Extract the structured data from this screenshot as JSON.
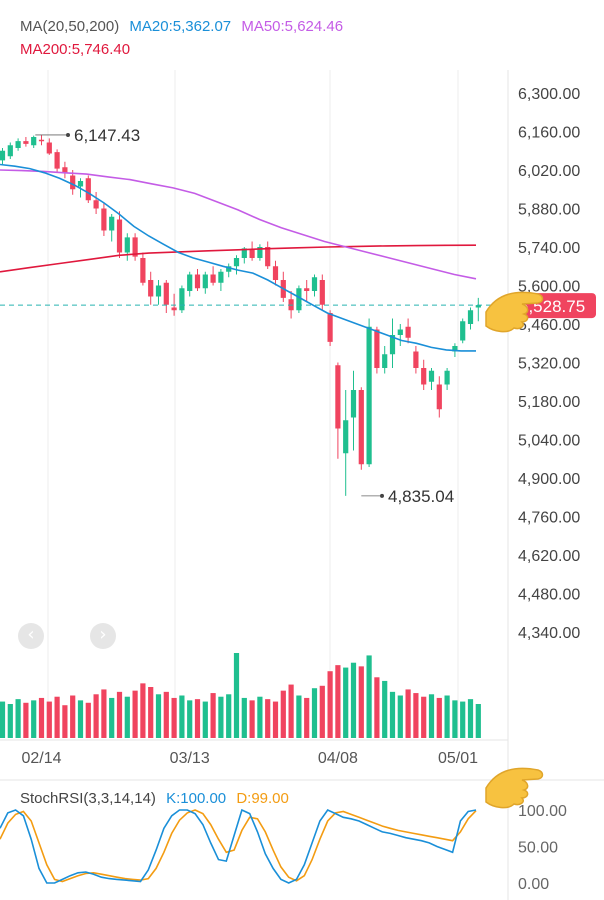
{
  "legend": {
    "ma_title": "MA(20,50,200)",
    "ma20": "MA20:5,362.07",
    "ma50": "MA50:5,624.46",
    "ma200": "MA200:5,746.40"
  },
  "stoch_legend": {
    "title": "StochRSI(3,3,14,14)",
    "k": "K:100.00",
    "d": "D:99.00"
  },
  "icons": {
    "nav_prev": "chevron-left-icon",
    "nav_next": "chevron-right-icon",
    "pointer_1": "pointing-hand-emoji",
    "pointer_2": "pointing-hand-emoji"
  },
  "colors": {
    "up": "#1fbf8f",
    "down": "#f0445f",
    "ma20": "#1a8fd8",
    "ma50": "#c45ce6",
    "ma200": "#e0183d",
    "stoch_k": "#1a8fd8",
    "stoch_d": "#f39c12",
    "last_price_line": "#28b3b0",
    "last_price_badge": "#f0445f"
  },
  "chart_data": {
    "type": "candlestick",
    "price_axis": {
      "ticks": [
        "6,300.00",
        "6,160.00",
        "6,020.00",
        "5,880.00",
        "5,740.00",
        "5,600.00",
        "5,460.00",
        "5,320.00",
        "5,180.00",
        "5,040.00",
        "4,900.00",
        "4,760.00",
        "4,620.00",
        "4,480.00",
        "4,340.00"
      ],
      "range": [
        4300,
        6380
      ]
    },
    "date_labels": [
      {
        "label": "02/14",
        "index": 5
      },
      {
        "label": "03/13",
        "index": 24
      },
      {
        "label": "04/08",
        "index": 43
      },
      {
        "label": "05/01",
        "index": 61
      }
    ],
    "last_price": {
      "label": "5,528.75",
      "value": 5528.75
    },
    "max_annotation": {
      "label": "6,147.43",
      "value": 6147.43,
      "index": 6
    },
    "min_annotation": {
      "label": "4,835.04",
      "value": 4835.04,
      "index": 46
    },
    "ohlc": [
      [
        6055,
        6100,
        6040,
        6090
      ],
      [
        6070,
        6120,
        6060,
        6110
      ],
      [
        6100,
        6135,
        6090,
        6125
      ],
      [
        6125,
        6140,
        6105,
        6115
      ],
      [
        6110,
        6145,
        6100,
        6140
      ],
      [
        6130,
        6147.43,
        6110,
        6125
      ],
      [
        6120,
        6135,
        6075,
        6080
      ],
      [
        6085,
        6095,
        6010,
        6025
      ],
      [
        6030,
        6050,
        5990,
        6010
      ],
      [
        6000,
        6020,
        5930,
        5950
      ],
      [
        5960,
        5990,
        5920,
        5980
      ],
      [
        5990,
        6000,
        5900,
        5910
      ],
      [
        5910,
        5940,
        5860,
        5880
      ],
      [
        5880,
        5900,
        5780,
        5800
      ],
      [
        5800,
        5860,
        5760,
        5850
      ],
      [
        5840,
        5870,
        5700,
        5720
      ],
      [
        5720,
        5790,
        5690,
        5775
      ],
      [
        5775,
        5790,
        5690,
        5705
      ],
      [
        5700,
        5720,
        5600,
        5610
      ],
      [
        5620,
        5650,
        5530,
        5560
      ],
      [
        5560,
        5620,
        5530,
        5600
      ],
      [
        5610,
        5620,
        5500,
        5530
      ],
      [
        5520,
        5570,
        5490,
        5510
      ],
      [
        5510,
        5600,
        5500,
        5590
      ],
      [
        5580,
        5650,
        5560,
        5640
      ],
      [
        5640,
        5660,
        5580,
        5590
      ],
      [
        5590,
        5650,
        5570,
        5640
      ],
      [
        5640,
        5670,
        5600,
        5610
      ],
      [
        5610,
        5660,
        5580,
        5650
      ],
      [
        5650,
        5680,
        5630,
        5670
      ],
      [
        5670,
        5710,
        5640,
        5700
      ],
      [
        5700,
        5740,
        5680,
        5735
      ],
      [
        5730,
        5760,
        5690,
        5700
      ],
      [
        5700,
        5750,
        5690,
        5740
      ],
      [
        5740,
        5760,
        5660,
        5670
      ],
      [
        5670,
        5690,
        5600,
        5620
      ],
      [
        5620,
        5650,
        5540,
        5555
      ],
      [
        5550,
        5580,
        5480,
        5510
      ],
      [
        5510,
        5600,
        5500,
        5590
      ],
      [
        5590,
        5620,
        5540,
        5580
      ],
      [
        5580,
        5640,
        5560,
        5630
      ],
      [
        5620,
        5640,
        5510,
        5530
      ],
      [
        5500,
        5510,
        5380,
        5395
      ],
      [
        5310,
        5320,
        4970,
        5080
      ],
      [
        4990,
        5220,
        4835.04,
        5110
      ],
      [
        5120,
        5290,
        5000,
        5220
      ],
      [
        5220,
        5230,
        4930,
        4950
      ],
      [
        4950,
        5480,
        4940,
        5450
      ],
      [
        5440,
        5450,
        5280,
        5300
      ],
      [
        5300,
        5380,
        5280,
        5350
      ],
      [
        5350,
        5480,
        5300,
        5420
      ],
      [
        5420,
        5460,
        5380,
        5440
      ],
      [
        5450,
        5480,
        5390,
        5410
      ],
      [
        5360,
        5380,
        5280,
        5300
      ],
      [
        5300,
        5330,
        5220,
        5240
      ],
      [
        5250,
        5300,
        5220,
        5290
      ],
      [
        5240,
        5270,
        5120,
        5150
      ],
      [
        5240,
        5300,
        5220,
        5290
      ],
      [
        5360,
        5390,
        5340,
        5380
      ],
      [
        5400,
        5480,
        5390,
        5470
      ],
      [
        5460,
        5520,
        5440,
        5510
      ],
      [
        5520,
        5555,
        5470,
        5528.75
      ]
    ],
    "volume": [
      30,
      28,
      32,
      29,
      31,
      33,
      30,
      34,
      27,
      35,
      31,
      29,
      36,
      40,
      33,
      38,
      34,
      39,
      45,
      42,
      36,
      38,
      33,
      35,
      31,
      32,
      30,
      37,
      34,
      36,
      70,
      33,
      31,
      34,
      32,
      30,
      39,
      44,
      35,
      33,
      41,
      43,
      55,
      60,
      58,
      62,
      59,
      68,
      50,
      47,
      38,
      35,
      40,
      37,
      34,
      36,
      33,
      35,
      31,
      30,
      32,
      28
    ],
    "ma20": [
      6040,
      6034,
      6025,
      6010,
      5990,
      5965,
      5935,
      5900,
      5860,
      5815,
      5780,
      5750,
      5720,
      5700,
      5685,
      5670,
      5656,
      5645,
      5620,
      5590,
      5560,
      5530,
      5500,
      5480,
      5460,
      5440,
      5420,
      5400,
      5390,
      5375,
      5366,
      5362,
      5362
    ],
    "ma50": [
      6020,
      6018,
      6015,
      6010,
      6005,
      5995,
      5985,
      5970,
      5955,
      5935,
      5905,
      5875,
      5840,
      5810,
      5785,
      5760,
      5740,
      5720,
      5700,
      5680,
      5660,
      5640,
      5624.46
    ],
    "ma200": [
      5650,
      5665,
      5680,
      5695,
      5710,
      5718,
      5722,
      5726,
      5730,
      5734,
      5737,
      5740,
      5742,
      5744,
      5745,
      5746,
      5746.4
    ],
    "stoch_rsi": {
      "axis_ticks": [
        "100.00",
        "50.00",
        "0.00"
      ],
      "range": [
        0,
        100
      ],
      "k": [
        75,
        96,
        100,
        92,
        60,
        20,
        0,
        0,
        5,
        10,
        14,
        15,
        12,
        8,
        6,
        5,
        4,
        3,
        2,
        18,
        45,
        75,
        92,
        100,
        100,
        95,
        80,
        55,
        32,
        30,
        65,
        100,
        95,
        70,
        40,
        20,
        5,
        0,
        5,
        25,
        55,
        85,
        100,
        95,
        90,
        88,
        85,
        80,
        75,
        70,
        68,
        65,
        62,
        60,
        58,
        55,
        50,
        46,
        42,
        85,
        98,
        100
      ],
      "d": [
        60,
        82,
        94,
        98,
        85,
        55,
        25,
        5,
        2,
        6,
        10,
        13,
        14,
        12,
        10,
        8,
        6,
        5,
        4,
        6,
        20,
        42,
        68,
        86,
        96,
        100,
        95,
        80,
        60,
        42,
        45,
        72,
        90,
        88,
        70,
        45,
        22,
        8,
        3,
        10,
        32,
        60,
        85,
        96,
        98,
        94,
        90,
        86,
        82,
        78,
        75,
        72,
        70,
        68,
        66,
        64,
        62,
        60,
        58,
        70,
        88,
        99
      ]
    }
  }
}
